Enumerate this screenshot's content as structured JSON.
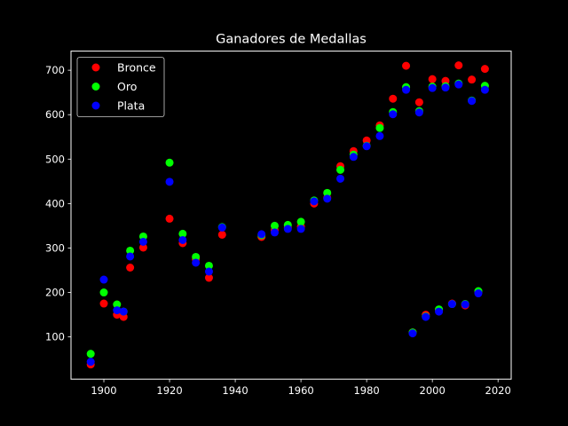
{
  "chart_data": {
    "type": "scatter",
    "title": "Ganadores de Medallas",
    "xlabel": "",
    "ylabel": "",
    "xlim": [
      1890,
      2024
    ],
    "ylim": [
      5,
      743
    ],
    "xticks": [
      1900,
      1920,
      1940,
      1960,
      1980,
      2000,
      2020
    ],
    "yticks": [
      100,
      200,
      300,
      400,
      500,
      600,
      700
    ],
    "grid": false,
    "legend_position": "top-left",
    "background": "#000000",
    "series": [
      {
        "name": "Bronce",
        "color": "#ff0000",
        "points": [
          [
            1896,
            38
          ],
          [
            1900,
            175
          ],
          [
            1904,
            150
          ],
          [
            1906,
            145
          ],
          [
            1908,
            256
          ],
          [
            1912,
            301
          ],
          [
            1920,
            366
          ],
          [
            1924,
            311
          ],
          [
            1928,
            275
          ],
          [
            1932,
            233
          ],
          [
            1936,
            330
          ],
          [
            1948,
            325
          ],
          [
            1952,
            340
          ],
          [
            1956,
            346
          ],
          [
            1960,
            348
          ],
          [
            1964,
            400
          ],
          [
            1968,
            413
          ],
          [
            1972,
            484
          ],
          [
            1976,
            518
          ],
          [
            1980,
            542
          ],
          [
            1984,
            576
          ],
          [
            1988,
            636
          ],
          [
            1992,
            710
          ],
          [
            1994,
            110
          ],
          [
            1996,
            628
          ],
          [
            1998,
            150
          ],
          [
            2000,
            680
          ],
          [
            2002,
            160
          ],
          [
            2004,
            676
          ],
          [
            2006,
            175
          ],
          [
            2008,
            711
          ],
          [
            2010,
            171
          ],
          [
            2012,
            679
          ],
          [
            2014,
            200
          ],
          [
            2016,
            703
          ]
        ]
      },
      {
        "name": "Oro",
        "color": "#00ff00",
        "points": [
          [
            1896,
            62
          ],
          [
            1900,
            200
          ],
          [
            1904,
            173
          ],
          [
            1906,
            157
          ],
          [
            1908,
            294
          ],
          [
            1912,
            326
          ],
          [
            1920,
            492
          ],
          [
            1924,
            332
          ],
          [
            1928,
            280
          ],
          [
            1932,
            260
          ],
          [
            1936,
            347
          ],
          [
            1948,
            329
          ],
          [
            1952,
            350
          ],
          [
            1956,
            352
          ],
          [
            1960,
            359
          ],
          [
            1964,
            407
          ],
          [
            1968,
            424
          ],
          [
            1972,
            476
          ],
          [
            1976,
            510
          ],
          [
            1980,
            530
          ],
          [
            1984,
            570
          ],
          [
            1988,
            606
          ],
          [
            1992,
            662
          ],
          [
            1994,
            110
          ],
          [
            1996,
            608
          ],
          [
            1998,
            146
          ],
          [
            2000,
            663
          ],
          [
            2002,
            162
          ],
          [
            2004,
            664
          ],
          [
            2006,
            174
          ],
          [
            2008,
            670
          ],
          [
            2010,
            174
          ],
          [
            2012,
            632
          ],
          [
            2014,
            203
          ],
          [
            2016,
            665
          ]
        ]
      },
      {
        "name": "Plata",
        "color": "#0000ff",
        "points": [
          [
            1896,
            44
          ],
          [
            1900,
            229
          ],
          [
            1904,
            160
          ],
          [
            1906,
            157
          ],
          [
            1908,
            281
          ],
          [
            1912,
            314
          ],
          [
            1920,
            449
          ],
          [
            1924,
            318
          ],
          [
            1928,
            267
          ],
          [
            1932,
            247
          ],
          [
            1936,
            346
          ],
          [
            1948,
            331
          ],
          [
            1952,
            335
          ],
          [
            1956,
            343
          ],
          [
            1960,
            343
          ],
          [
            1964,
            405
          ],
          [
            1968,
            411
          ],
          [
            1972,
            456
          ],
          [
            1976,
            505
          ],
          [
            1980,
            529
          ],
          [
            1984,
            552
          ],
          [
            1988,
            601
          ],
          [
            1992,
            656
          ],
          [
            1994,
            108
          ],
          [
            1996,
            605
          ],
          [
            1998,
            145
          ],
          [
            2000,
            660
          ],
          [
            2002,
            157
          ],
          [
            2004,
            661
          ],
          [
            2006,
            174
          ],
          [
            2008,
            668
          ],
          [
            2010,
            173
          ],
          [
            2012,
            631
          ],
          [
            2014,
            198
          ],
          [
            2016,
            656
          ]
        ]
      }
    ]
  }
}
